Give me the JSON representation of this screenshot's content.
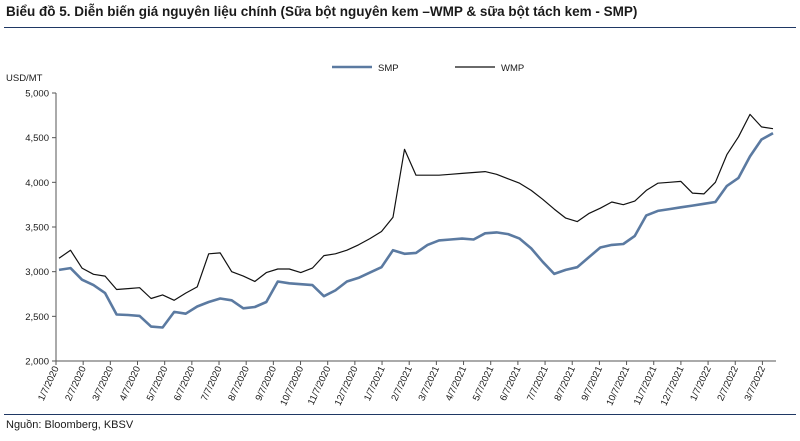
{
  "title": "Biểu đồ 5. Diễn biến giá nguyên liệu chính (Sữa bột nguyên kem –WMP & sữa bột tách kem - SMP)",
  "source": "Nguồn: Bloomberg, KBSV",
  "colors": {
    "smp": "#5b7aa1",
    "wmp": "#111111",
    "rule": "#1f3864"
  },
  "chart_data": {
    "type": "line",
    "ylabel": "USD/MT",
    "ylim": [
      2000,
      5000
    ],
    "yticks": [
      "2,000",
      "2,500",
      "3,000",
      "3,500",
      "4,000",
      "4,500",
      "5,000"
    ],
    "ytick_values": [
      2000,
      2500,
      3000,
      3500,
      4000,
      4500,
      5000
    ],
    "xticks": [
      "1/7/2020",
      "2/7/2020",
      "3/7/2020",
      "4/7/2020",
      "5/7/2020",
      "6/7/2020",
      "7/7/2020",
      "8/7/2020",
      "9/7/2020",
      "10/7/2020",
      "11/7/2020",
      "12/7/2020",
      "1/7/2021",
      "2/7/2021",
      "3/7/2021",
      "4/7/2021",
      "5/7/2021",
      "6/7/2021",
      "7/7/2021",
      "8/7/2021",
      "9/7/2021",
      "10/7/2021",
      "11/7/2021",
      "12/7/2021",
      "1/7/2022",
      "2/7/2022",
      "3/7/2022"
    ],
    "legend_position": "top",
    "grid": false,
    "series": [
      {
        "name": "SMP",
        "values": [
          3020,
          3040,
          2910,
          2850,
          2760,
          2520,
          2515,
          2505,
          2385,
          2375,
          2550,
          2530,
          2610,
          2660,
          2700,
          2680,
          2590,
          2605,
          2660,
          2890,
          2870,
          2860,
          2850,
          2725,
          2790,
          2890,
          2930,
          2990,
          3050,
          3240,
          3200,
          3210,
          3300,
          3350,
          3360,
          3370,
          3360,
          3430,
          3440,
          3420,
          3370,
          3260,
          3110,
          2975,
          3020,
          3050,
          3160,
          3270,
          3300,
          3310,
          3400,
          3630,
          3680,
          3700,
          3720,
          3740,
          3760,
          3780,
          3960,
          4050,
          4290,
          4480,
          4550
        ]
      },
      {
        "name": "WMP",
        "values": [
          3150,
          3240,
          3040,
          2970,
          2950,
          2800,
          2810,
          2820,
          2700,
          2740,
          2680,
          2760,
          2830,
          3200,
          3210,
          3000,
          2950,
          2890,
          2990,
          3030,
          3030,
          2990,
          3040,
          3180,
          3200,
          3240,
          3300,
          3370,
          3450,
          3610,
          4370,
          4080,
          4080,
          4080,
          4090,
          4100,
          4110,
          4120,
          4090,
          4040,
          3990,
          3910,
          3810,
          3700,
          3600,
          3560,
          3650,
          3710,
          3780,
          3750,
          3790,
          3910,
          3990,
          4000,
          4010,
          3880,
          3870,
          4000,
          4310,
          4510,
          4760,
          4620,
          4600
        ]
      }
    ]
  }
}
